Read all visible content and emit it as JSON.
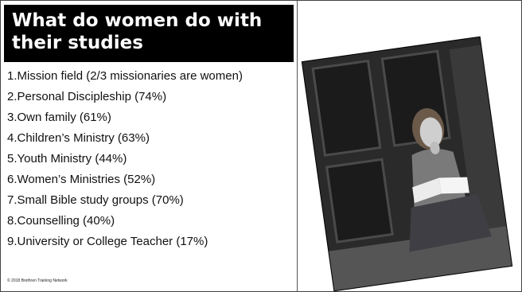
{
  "slide": {
    "title": "What do women do with their studies",
    "items": [
      "1.Mission field (2/3 missionaries are women)",
      "2.Personal Discipleship (74%)",
      "3.Own family (61%)",
      "4.Children’s Ministry (63%)",
      "5.Youth Ministry (44%)",
      "6.Women’s Ministries (52%)",
      "7.Small Bible study groups (70%)",
      "8.Counselling (40%)",
      "9.University or College Teacher (17%)"
    ],
    "copyright": "© 2018 Brethren Training Network"
  },
  "colors": {
    "title_bg": "#000000",
    "title_text": "#ffffff",
    "body_text": "#111111"
  },
  "photo": {
    "icon": "woman-reading-bible-photo"
  }
}
